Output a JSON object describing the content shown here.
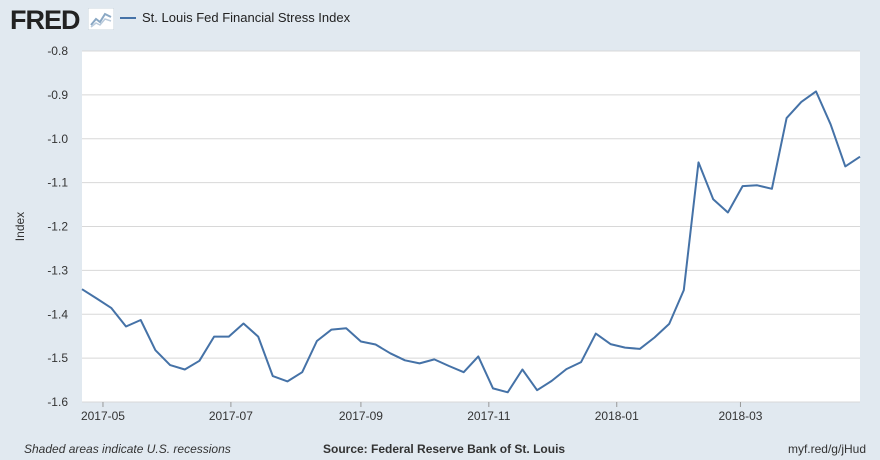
{
  "header": {
    "logo_text": "FRED",
    "legend_label": "St. Louis Fed Financial Stress Index"
  },
  "footer": {
    "note": "Shaded areas indicate U.S. recessions",
    "source": "Source: Federal Reserve Bank of St. Louis",
    "link": "myf.red/g/jHud"
  },
  "colors": {
    "line": "#4572a7",
    "page_bg": "#e1e9f0",
    "plot_bg": "#ffffff",
    "grid": "#d8d8d8"
  },
  "chart_data": {
    "type": "line",
    "title": "",
    "xlabel": "",
    "ylabel": "Index",
    "ylim": [
      -1.6,
      -0.8
    ],
    "yticks": [
      "-1.6",
      "-1.5",
      "-1.4",
      "-1.3",
      "-1.2",
      "-1.1",
      "-1.0",
      "-0.9",
      "-0.8"
    ],
    "xlim": [
      "2017-04-21",
      "2018-04-27"
    ],
    "xticks": [
      {
        "date": "2017-05-01",
        "label": "2017-05"
      },
      {
        "date": "2017-07-01",
        "label": "2017-07"
      },
      {
        "date": "2017-09-01",
        "label": "2017-09"
      },
      {
        "date": "2017-11-01",
        "label": "2017-11"
      },
      {
        "date": "2018-01-01",
        "label": "2018-01"
      },
      {
        "date": "2018-03-01",
        "label": "2018-03"
      }
    ],
    "grid": true,
    "legend": "top-left",
    "series": [
      {
        "name": "St. Louis Fed Financial Stress Index",
        "x": [
          "2017-04-21",
          "2017-04-28",
          "2017-05-05",
          "2017-05-12",
          "2017-05-19",
          "2017-05-26",
          "2017-06-02",
          "2017-06-09",
          "2017-06-16",
          "2017-06-23",
          "2017-06-30",
          "2017-07-07",
          "2017-07-14",
          "2017-07-21",
          "2017-07-28",
          "2017-08-04",
          "2017-08-11",
          "2017-08-18",
          "2017-08-25",
          "2017-09-01",
          "2017-09-08",
          "2017-09-15",
          "2017-09-22",
          "2017-09-29",
          "2017-10-06",
          "2017-10-13",
          "2017-10-20",
          "2017-10-27",
          "2017-11-03",
          "2017-11-10",
          "2017-11-17",
          "2017-11-24",
          "2017-12-01",
          "2017-12-08",
          "2017-12-15",
          "2017-12-22",
          "2017-12-29",
          "2018-01-05",
          "2018-01-12",
          "2018-01-19",
          "2018-01-26",
          "2018-02-02",
          "2018-02-09",
          "2018-02-16",
          "2018-02-23",
          "2018-03-02",
          "2018-03-09",
          "2018-03-16",
          "2018-03-23",
          "2018-03-30",
          "2018-04-06",
          "2018-04-13",
          "2018-04-20",
          "2018-04-27"
        ],
        "values": [
          -1.343,
          -1.364,
          -1.386,
          -1.428,
          -1.413,
          -1.482,
          -1.516,
          -1.526,
          -1.506,
          -1.451,
          -1.451,
          -1.421,
          -1.451,
          -1.541,
          -1.553,
          -1.532,
          -1.461,
          -1.435,
          -1.432,
          -1.462,
          -1.469,
          -1.489,
          -1.505,
          -1.512,
          -1.503,
          -1.518,
          -1.532,
          -1.496,
          -1.569,
          -1.578,
          -1.526,
          -1.573,
          -1.552,
          -1.525,
          -1.509,
          -1.444,
          -1.468,
          -1.476,
          -1.479,
          -1.453,
          -1.422,
          -1.345,
          -1.054,
          -1.138,
          -1.168,
          -1.108,
          -1.106,
          -1.114,
          -0.953,
          -0.916,
          -0.892,
          -0.967,
          -1.063,
          -1.041
        ]
      }
    ]
  }
}
